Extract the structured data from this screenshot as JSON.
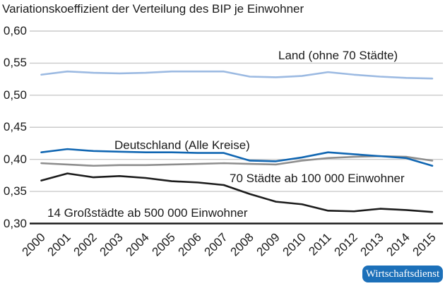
{
  "title": "Variationskoeffizient der Verteilung des BIP je Einwohner",
  "chart_data": {
    "type": "line",
    "x": [
      2000,
      2001,
      2002,
      2003,
      2004,
      2005,
      2006,
      2007,
      2008,
      2009,
      2010,
      2011,
      2012,
      2013,
      2014,
      2015
    ],
    "series": [
      {
        "name": "Land (ohne 70 Städte)",
        "color": "#9cbae2",
        "values": [
          0.532,
          0.537,
          0.535,
          0.534,
          0.535,
          0.537,
          0.537,
          0.537,
          0.529,
          0.528,
          0.53,
          0.536,
          0.532,
          0.529,
          0.527,
          0.526
        ]
      },
      {
        "name": "Deutschland (Alle Kreise)",
        "color": "#1066b2",
        "values": [
          0.411,
          0.416,
          0.413,
          0.412,
          0.411,
          0.411,
          0.41,
          0.41,
          0.398,
          0.397,
          0.403,
          0.411,
          0.408,
          0.405,
          0.402,
          0.39
        ]
      },
      {
        "name": "70 Städte ab 100 000 Einwohner",
        "color": "#8e8e8e",
        "values": [
          0.394,
          0.392,
          0.39,
          0.391,
          0.391,
          0.392,
          0.393,
          0.394,
          0.393,
          0.392,
          0.398,
          0.402,
          0.404,
          0.405,
          0.404,
          0.398
        ]
      },
      {
        "name": "14 Großstädte ab 500 000 Einwohner",
        "color": "#1c1c1c",
        "values": [
          0.367,
          0.378,
          0.372,
          0.374,
          0.371,
          0.366,
          0.364,
          0.36,
          0.346,
          0.334,
          0.33,
          0.32,
          0.319,
          0.323,
          0.321,
          0.318
        ]
      }
    ],
    "ylim": [
      0.3,
      0.6
    ],
    "ytick_values": [
      0.6,
      0.55,
      0.5,
      0.45,
      0.4,
      0.35,
      0.3
    ],
    "ytick_labels": [
      "0,60",
      "0,55",
      "0,50",
      "0,45",
      "0,40",
      "0,35",
      "0,30"
    ],
    "xlabel": "",
    "ylabel": "",
    "grid": "horizontal",
    "legend_position": "inline-labels"
  },
  "colors": {
    "gridline": "#cacaca",
    "axis": "#1b1b1b"
  },
  "branding": {
    "logo_text": "Wirtschaftsdienst",
    "logo_bg": "#1c70b9",
    "logo_text_color": "#ffffff"
  }
}
